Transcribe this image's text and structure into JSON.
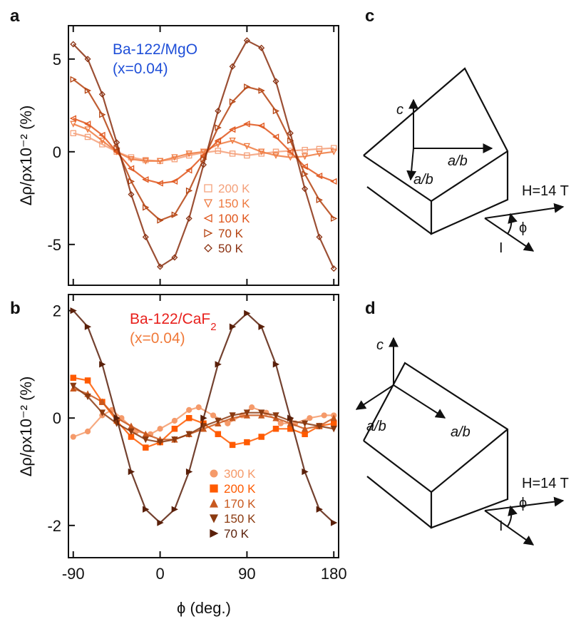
{
  "panels": {
    "a": "a",
    "b": "b",
    "c": "c",
    "d": "d"
  },
  "chart_data": [
    {
      "type": "line",
      "panel": "a",
      "title": "Ba-122/MgO",
      "subtitle": "(x=0.04)",
      "title_color": "#1f4fd8",
      "xlabel": "",
      "ylabel": "Δρ/ρx10⁻² (%)",
      "xlim": [
        -95,
        185
      ],
      "ylim": [
        -7.2,
        6.8
      ],
      "yticks": [
        5,
        0,
        -5
      ],
      "xticks": [
        -90,
        0,
        90,
        180
      ],
      "series": [
        {
          "name": "200 K",
          "color": "#f4a07a",
          "marker": "square-open",
          "points": [
            [
              -90,
              1.0
            ],
            [
              -75,
              0.8
            ],
            [
              -60,
              0.4
            ],
            [
              -45,
              0.0
            ],
            [
              -30,
              -0.3
            ],
            [
              -15,
              -0.45
            ],
            [
              0,
              -0.5
            ],
            [
              15,
              -0.4
            ],
            [
              30,
              -0.2
            ],
            [
              45,
              -0.05
            ],
            [
              60,
              0.05
            ],
            [
              75,
              -0.1
            ],
            [
              90,
              -0.2
            ],
            [
              105,
              -0.1
            ],
            [
              120,
              0.0
            ],
            [
              135,
              0.05
            ],
            [
              150,
              0.1
            ],
            [
              165,
              0.15
            ],
            [
              180,
              0.2
            ]
          ]
        },
        {
          "name": "150 K",
          "color": "#ee7a40",
          "marker": "triangle-down-open",
          "points": [
            [
              -90,
              1.5
            ],
            [
              -75,
              1.2
            ],
            [
              -60,
              0.6
            ],
            [
              -45,
              0.0
            ],
            [
              -30,
              -0.4
            ],
            [
              -15,
              -0.5
            ],
            [
              0,
              -0.5
            ],
            [
              15,
              -0.3
            ],
            [
              30,
              -0.1
            ],
            [
              45,
              0.0
            ],
            [
              60,
              0.4
            ],
            [
              75,
              0.6
            ],
            [
              90,
              0.3
            ],
            [
              105,
              0.0
            ],
            [
              120,
              -0.2
            ],
            [
              135,
              -0.3
            ],
            [
              150,
              -0.25
            ],
            [
              165,
              -0.1
            ],
            [
              180,
              0.0
            ]
          ]
        },
        {
          "name": "100 K",
          "color": "#e0561c",
          "marker": "triangle-left-open",
          "points": [
            [
              -90,
              1.8
            ],
            [
              -75,
              1.5
            ],
            [
              -60,
              0.9
            ],
            [
              -45,
              0.0
            ],
            [
              -30,
              -0.9
            ],
            [
              -15,
              -1.5
            ],
            [
              0,
              -1.7
            ],
            [
              15,
              -1.6
            ],
            [
              30,
              -1.0
            ],
            [
              45,
              -0.2
            ],
            [
              60,
              0.6
            ],
            [
              75,
              1.2
            ],
            [
              90,
              1.5
            ],
            [
              105,
              1.4
            ],
            [
              120,
              0.8
            ],
            [
              135,
              0.0
            ],
            [
              150,
              -0.8
            ],
            [
              165,
              -1.3
            ],
            [
              180,
              -1.6
            ]
          ]
        },
        {
          "name": "70 K",
          "color": "#b4420f",
          "marker": "triangle-right-open",
          "points": [
            [
              -90,
              3.9
            ],
            [
              -75,
              3.3
            ],
            [
              -60,
              2.0
            ],
            [
              -45,
              0.2
            ],
            [
              -30,
              -1.6
            ],
            [
              -15,
              -3.0
            ],
            [
              0,
              -3.7
            ],
            [
              15,
              -3.4
            ],
            [
              30,
              -2.1
            ],
            [
              45,
              -0.4
            ],
            [
              60,
              1.3
            ],
            [
              75,
              2.7
            ],
            [
              90,
              3.5
            ],
            [
              105,
              3.3
            ],
            [
              120,
              2.2
            ],
            [
              135,
              0.6
            ],
            [
              150,
              -1.2
            ],
            [
              165,
              -2.6
            ],
            [
              180,
              -3.6
            ]
          ]
        },
        {
          "name": "50 K",
          "color": "#8a3010",
          "marker": "diamond-open",
          "points": [
            [
              -90,
              5.8
            ],
            [
              -75,
              5.0
            ],
            [
              -60,
              3.1
            ],
            [
              -45,
              0.5
            ],
            [
              -30,
              -2.3
            ],
            [
              -15,
              -4.6
            ],
            [
              0,
              -6.2
            ],
            [
              15,
              -5.7
            ],
            [
              30,
              -3.6
            ],
            [
              45,
              -0.7
            ],
            [
              60,
              2.2
            ],
            [
              75,
              4.6
            ],
            [
              90,
              6.0
            ],
            [
              105,
              5.6
            ],
            [
              120,
              3.8
            ],
            [
              135,
              1.0
            ],
            [
              150,
              -2.0
            ],
            [
              165,
              -4.6
            ],
            [
              180,
              -6.3
            ]
          ]
        }
      ]
    },
    {
      "type": "line",
      "panel": "b",
      "title": "Ba-122/CaF2",
      "subtitle": "(x=0.04)",
      "title_color": "#e8201c",
      "subtitle_color": "#f07a3a",
      "xlabel": "ϕ (deg.)",
      "ylabel": "Δρ/ρx10⁻² (%)",
      "xlim": [
        -95,
        185
      ],
      "ylim": [
        -2.6,
        2.3
      ],
      "yticks": [
        2,
        0,
        -2
      ],
      "xticks": [
        -90,
        0,
        90,
        180
      ],
      "xticklabels": [
        "-90",
        "0",
        "90",
        "180"
      ],
      "series": [
        {
          "name": "300 K",
          "color": "#f59a6a",
          "marker": "circle",
          "points": [
            [
              -90,
              -0.35
            ],
            [
              -75,
              -0.25
            ],
            [
              -60,
              0.05
            ],
            [
              -50,
              0.15
            ],
            [
              -40,
              0.0
            ],
            [
              -25,
              -0.25
            ],
            [
              -10,
              -0.3
            ],
            [
              0,
              -0.2
            ],
            [
              15,
              -0.05
            ],
            [
              30,
              0.15
            ],
            [
              40,
              0.2
            ],
            [
              55,
              0.05
            ],
            [
              70,
              -0.1
            ],
            [
              85,
              0.05
            ],
            [
              95,
              0.2
            ],
            [
              110,
              0.1
            ],
            [
              125,
              -0.1
            ],
            [
              140,
              -0.1
            ],
            [
              155,
              0.0
            ],
            [
              170,
              0.05
            ],
            [
              180,
              0.05
            ]
          ]
        },
        {
          "name": "200 K",
          "color": "#ff5a00",
          "marker": "square",
          "points": [
            [
              -90,
              0.75
            ],
            [
              -75,
              0.7
            ],
            [
              -60,
              0.3
            ],
            [
              -45,
              -0.05
            ],
            [
              -30,
              -0.35
            ],
            [
              -15,
              -0.55
            ],
            [
              0,
              -0.45
            ],
            [
              15,
              -0.2
            ],
            [
              30,
              0.0
            ],
            [
              45,
              -0.1
            ],
            [
              60,
              -0.3
            ],
            [
              75,
              -0.5
            ],
            [
              90,
              -0.45
            ],
            [
              105,
              -0.35
            ],
            [
              120,
              -0.2
            ],
            [
              135,
              -0.2
            ],
            [
              150,
              -0.3
            ],
            [
              165,
              -0.15
            ],
            [
              180,
              -0.1
            ]
          ]
        },
        {
          "name": "170 K",
          "color": "#c8581e",
          "marker": "triangle-up",
          "points": [
            [
              -90,
              0.55
            ],
            [
              -75,
              0.45
            ],
            [
              -60,
              0.3
            ],
            [
              -45,
              0.0
            ],
            [
              -30,
              -0.15
            ],
            [
              -15,
              -0.3
            ],
            [
              0,
              -0.4
            ],
            [
              15,
              -0.4
            ],
            [
              30,
              -0.3
            ],
            [
              45,
              -0.2
            ],
            [
              60,
              -0.1
            ],
            [
              75,
              0.0
            ],
            [
              90,
              0.05
            ],
            [
              105,
              0.05
            ],
            [
              120,
              0.0
            ],
            [
              135,
              -0.1
            ],
            [
              150,
              -0.2
            ],
            [
              165,
              -0.15
            ],
            [
              180,
              0.0
            ]
          ]
        },
        {
          "name": "150 K",
          "color": "#8b3a10",
          "marker": "triangle-down",
          "points": [
            [
              -90,
              0.6
            ],
            [
              -75,
              0.4
            ],
            [
              -60,
              0.1
            ],
            [
              -45,
              -0.1
            ],
            [
              -30,
              -0.25
            ],
            [
              -15,
              -0.4
            ],
            [
              0,
              -0.45
            ],
            [
              15,
              -0.4
            ],
            [
              30,
              -0.3
            ],
            [
              45,
              -0.15
            ],
            [
              60,
              -0.05
            ],
            [
              75,
              0.05
            ],
            [
              90,
              0.1
            ],
            [
              105,
              0.1
            ],
            [
              120,
              0.05
            ],
            [
              135,
              -0.05
            ],
            [
              150,
              -0.1
            ],
            [
              165,
              -0.15
            ],
            [
              180,
              -0.2
            ]
          ]
        },
        {
          "name": "70 K",
          "color": "#5a200a",
          "marker": "triangle-right",
          "points": [
            [
              -90,
              2.0
            ],
            [
              -75,
              1.7
            ],
            [
              -60,
              1.0
            ],
            [
              -45,
              0.0
            ],
            [
              -30,
              -1.0
            ],
            [
              -15,
              -1.7
            ],
            [
              0,
              -1.95
            ],
            [
              15,
              -1.7
            ],
            [
              30,
              -1.0
            ],
            [
              45,
              0.0
            ],
            [
              60,
              1.0
            ],
            [
              75,
              1.7
            ],
            [
              90,
              1.95
            ],
            [
              105,
              1.7
            ],
            [
              120,
              1.0
            ],
            [
              135,
              0.0
            ],
            [
              150,
              -1.0
            ],
            [
              165,
              -1.7
            ],
            [
              180,
              -1.95
            ]
          ]
        }
      ]
    }
  ],
  "sketch_c": {
    "c_label": "c",
    "ab_label_1": "a/b",
    "ab_label_2": "a/b",
    "field_label": "H=14 T",
    "current_label": "I",
    "angle_label": "ϕ"
  },
  "sketch_d": {
    "c_label": "c",
    "ab_label_1": "a/b",
    "ab_label_2": "a/b",
    "field_label": "H=14 T",
    "current_label": "I",
    "angle_label": "ϕ"
  }
}
